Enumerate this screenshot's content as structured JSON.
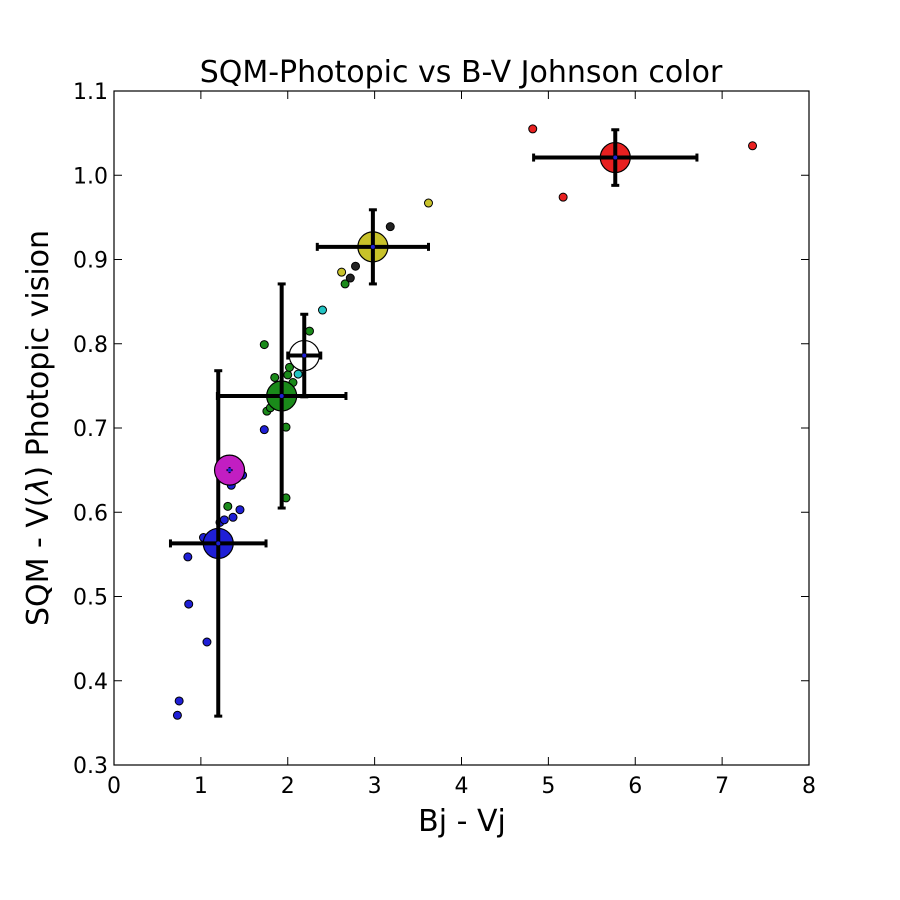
{
  "chart_data": {
    "type": "scatter",
    "title": "SQM-Photopic vs B-V Johnson color",
    "xlabel": "Bj - Vj",
    "ylabel_parts": [
      "SQM - V(",
      "λ",
      ") Photopic vision"
    ],
    "xlim": [
      0,
      8
    ],
    "ylim": [
      0.3,
      1.1
    ],
    "x_ticks": [
      0,
      1,
      2,
      3,
      4,
      5,
      6,
      7,
      8
    ],
    "x_tick_labels": [
      "0",
      "1",
      "2",
      "3",
      "4",
      "5",
      "6",
      "7",
      "8"
    ],
    "y_ticks": [
      0.3,
      0.4,
      0.5,
      0.6,
      0.7,
      0.8,
      0.9,
      1.0,
      1.1
    ],
    "y_tick_labels": [
      "0.3",
      "0.4",
      "0.5",
      "0.6",
      "0.7",
      "0.8",
      "0.9",
      "1.0",
      "1.1"
    ],
    "grid": false,
    "points": [
      {
        "x": 0.73,
        "y": 0.359,
        "color": "#1f1fd6"
      },
      {
        "x": 0.75,
        "y": 0.376,
        "color": "#1f1fd6"
      },
      {
        "x": 1.07,
        "y": 0.446,
        "color": "#1f1fd6"
      },
      {
        "x": 0.86,
        "y": 0.491,
        "color": "#1f1fd6"
      },
      {
        "x": 0.85,
        "y": 0.547,
        "color": "#1f1fd6"
      },
      {
        "x": 1.03,
        "y": 0.57,
        "color": "#1f1fd6"
      },
      {
        "x": 1.14,
        "y": 0.572,
        "color": "#1f1fd6"
      },
      {
        "x": 1.22,
        "y": 0.588,
        "color": "#1f1fd6"
      },
      {
        "x": 1.27,
        "y": 0.591,
        "color": "#1f1fd6"
      },
      {
        "x": 1.37,
        "y": 0.594,
        "color": "#1f1fd6"
      },
      {
        "x": 1.45,
        "y": 0.603,
        "color": "#1f1fd6"
      },
      {
        "x": 1.35,
        "y": 0.632,
        "color": "#1f1fd6"
      },
      {
        "x": 1.48,
        "y": 0.644,
        "color": "#1f1fd6"
      },
      {
        "x": 1.73,
        "y": 0.698,
        "color": "#1f1fd6"
      },
      {
        "x": 1.31,
        "y": 0.607,
        "color": "#1a8a1a"
      },
      {
        "x": 1.73,
        "y": 0.799,
        "color": "#1a8a1a"
      },
      {
        "x": 1.98,
        "y": 0.617,
        "color": "#1a8a1a"
      },
      {
        "x": 1.98,
        "y": 0.701,
        "color": "#1a8a1a"
      },
      {
        "x": 1.76,
        "y": 0.72,
        "color": "#1a8a1a"
      },
      {
        "x": 1.8,
        "y": 0.724,
        "color": "#1a8a1a"
      },
      {
        "x": 1.9,
        "y": 0.746,
        "color": "#1a8a1a"
      },
      {
        "x": 2.06,
        "y": 0.754,
        "color": "#1a8a1a"
      },
      {
        "x": 1.85,
        "y": 0.76,
        "color": "#1a8a1a"
      },
      {
        "x": 2.0,
        "y": 0.763,
        "color": "#1a8a1a"
      },
      {
        "x": 2.02,
        "y": 0.772,
        "color": "#1a8a1a"
      },
      {
        "x": 2.25,
        "y": 0.815,
        "color": "#1a8a1a"
      },
      {
        "x": 2.66,
        "y": 0.871,
        "color": "#1a8a1a"
      },
      {
        "x": 2.12,
        "y": 0.764,
        "color": "#22c4c4"
      },
      {
        "x": 2.4,
        "y": 0.84,
        "color": "#22c4c4"
      },
      {
        "x": 2.72,
        "y": 0.878,
        "color": "#222222"
      },
      {
        "x": 2.78,
        "y": 0.892,
        "color": "#222222"
      },
      {
        "x": 3.18,
        "y": 0.939,
        "color": "#222222"
      },
      {
        "x": 2.62,
        "y": 0.885,
        "color": "#c8c22a"
      },
      {
        "x": 3.62,
        "y": 0.967,
        "color": "#c8c22a"
      },
      {
        "x": 4.82,
        "y": 1.055,
        "color": "#e82020"
      },
      {
        "x": 5.17,
        "y": 0.974,
        "color": "#e82020"
      },
      {
        "x": 7.35,
        "y": 1.035,
        "color": "#e82020"
      }
    ],
    "means": [
      {
        "x": 1.2,
        "y": 0.563,
        "xerr": 0.55,
        "yerr": 0.205,
        "color": "#1f1fd6"
      },
      {
        "x": 1.33,
        "y": 0.65,
        "xerr": 0.0,
        "yerr": 0.0,
        "color": "#c21ec2"
      },
      {
        "x": 1.93,
        "y": 0.738,
        "xerr": 0.74,
        "yerr": 0.133,
        "color": "#1a8a1a"
      },
      {
        "x": 2.19,
        "y": 0.786,
        "xerr": 0.19,
        "yerr": 0.049,
        "color": "#ffffff"
      },
      {
        "x": 2.98,
        "y": 0.915,
        "xerr": 0.64,
        "yerr": 0.044,
        "color": "#c8c22a"
      },
      {
        "x": 5.77,
        "y": 1.021,
        "xerr": 0.94,
        "yerr": 0.033,
        "color": "#e82020"
      }
    ]
  }
}
